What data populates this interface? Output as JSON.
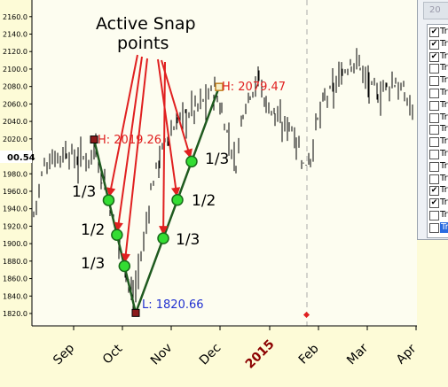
{
  "annotation": {
    "title_line1": "Active Snap",
    "title_line2": "points",
    "snap_labels": [
      "1/3",
      "1/2",
      "1/3",
      "1/3",
      "1/2",
      "1/3"
    ]
  },
  "price_labels": {
    "high1": "H: 2019.26",
    "high2": "H: 2079.47",
    "low": "L: 1820.66",
    "current": "00.54"
  },
  "panel": {
    "header": "20",
    "rows": [
      {
        "label": "Tr",
        "checked": true
      },
      {
        "label": "Tr",
        "checked": true
      },
      {
        "label": "Tr",
        "checked": true
      },
      {
        "label": "Tr",
        "checked": false
      },
      {
        "label": "Tr",
        "checked": false
      },
      {
        "label": "Tr",
        "checked": false
      },
      {
        "label": "Tr",
        "checked": false
      },
      {
        "label": "Tr",
        "checked": false
      },
      {
        "label": "Tr",
        "checked": false
      },
      {
        "label": "Tr",
        "checked": false
      },
      {
        "label": "Tr",
        "checked": false
      },
      {
        "label": "Tr",
        "checked": false
      },
      {
        "label": "Tr",
        "checked": false
      },
      {
        "label": "Tr",
        "checked": true
      },
      {
        "label": "Tr",
        "checked": true
      },
      {
        "label": "Tr",
        "checked": false
      },
      {
        "label": "Tr",
        "checked": false,
        "selected": true
      }
    ]
  },
  "chart_data": {
    "type": "candlestick",
    "y_ticks": [
      "1820.0",
      "1840.0",
      "1860.0",
      "1880.0",
      "1900.0",
      "1920.0",
      "1940.0",
      "1960.0",
      "1980.0",
      "2000.0",
      "2020.0",
      "2040.0",
      "2060.0",
      "2080.0",
      "2100.0",
      "2120.0",
      "2140.0",
      "2160.0"
    ],
    "x_ticks": [
      {
        "label": "Sep",
        "color": "#000000"
      },
      {
        "label": "Oct",
        "color": "#000000"
      },
      {
        "label": "Nov",
        "color": "#000000"
      },
      {
        "label": "Dec",
        "color": "#000000"
      },
      {
        "label": "2015",
        "color": "#8b0000",
        "bold": true
      },
      {
        "label": "Feb",
        "color": "#000000"
      },
      {
        "label": "Mar",
        "color": "#000000"
      },
      {
        "label": "Apr",
        "color": "#000000"
      }
    ],
    "ylim": [
      1815,
      2170
    ],
    "abc_points": [
      2019.26,
      1820.66,
      2079.47
    ]
  }
}
